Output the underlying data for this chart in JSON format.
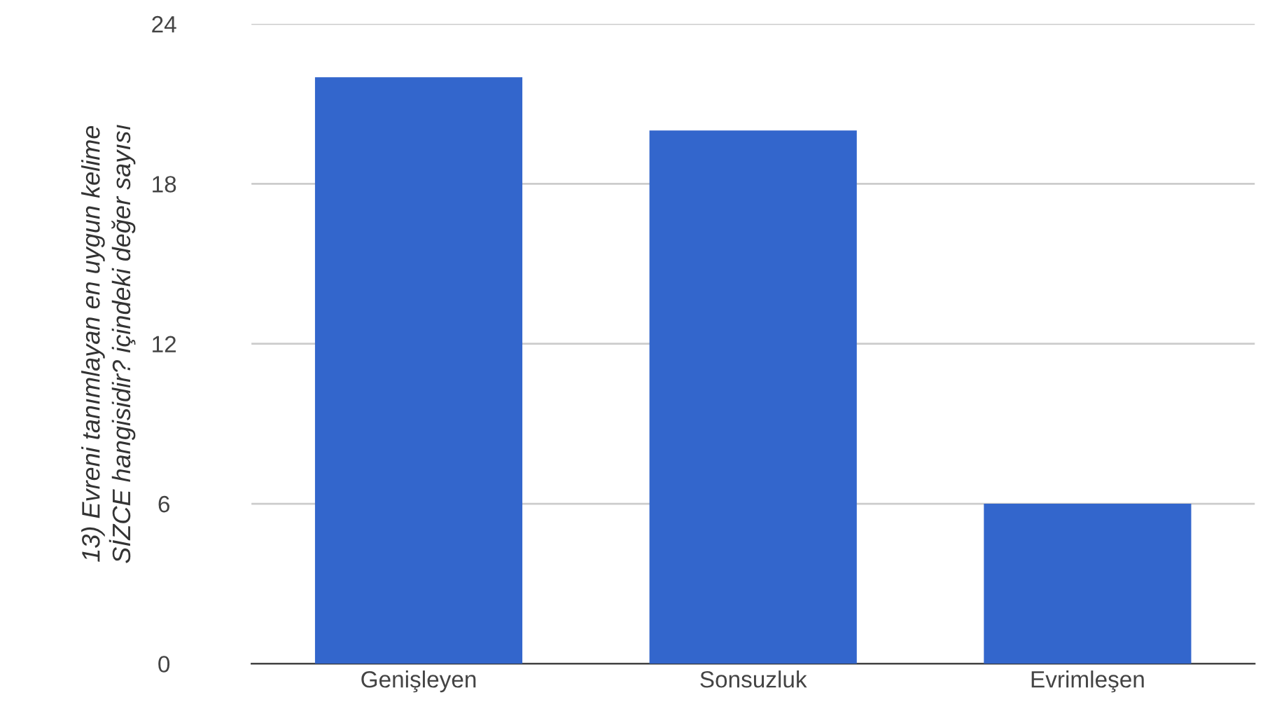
{
  "chart_data": {
    "type": "bar",
    "ylabel": "13) Evreni tanımlayan en uygun kelime\nSİZCE hangisidir? içindeki değer sayısı",
    "categories": [
      "Genişleyen",
      "Sonsuzluk",
      "Evrimleşen"
    ],
    "values": [
      22,
      20,
      6
    ],
    "color": "#3366cc",
    "ylim": [
      0,
      24
    ],
    "yticks": [
      0,
      6,
      12,
      18,
      24
    ],
    "grid": "y"
  }
}
